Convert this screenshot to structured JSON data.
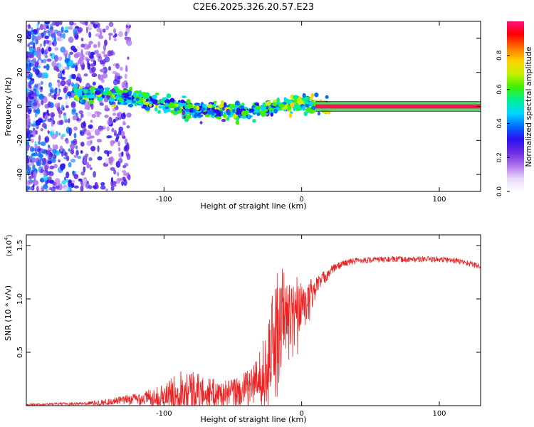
{
  "figure_title": "C2E6.2025.326.20.57.E23",
  "chart_data": [
    {
      "type": "heatmap",
      "title": "C2E6.2025.326.20.57.E23",
      "xlabel": "Height of straight line (km)",
      "ylabel": "Frequency (Hz)",
      "xlim": [
        -200,
        130
      ],
      "ylim": [
        -50,
        50
      ],
      "x_ticks": [
        -100,
        0,
        100
      ],
      "x_tick_labels": [
        "-100",
        "0",
        "100"
      ],
      "y_ticks": [
        -40,
        -20,
        0,
        20,
        40
      ],
      "y_tick_labels": [
        "-40",
        "-20",
        "0",
        "20",
        "40"
      ],
      "colorbar": {
        "label": "Normalized spectral amplitude",
        "range": [
          0.0,
          1.0
        ],
        "ticks": [
          0.0,
          0.2,
          0.4,
          0.6,
          0.8
        ],
        "tick_labels": [
          "0.0",
          "0.2",
          "0.4",
          "0.6",
          "0.8"
        ],
        "colormap": [
          "#ffffff",
          "#e8d8f8",
          "#b070f0",
          "#6a2ce0",
          "#2a10f0",
          "#0070ff",
          "#00d8ff",
          "#00f090",
          "#40f000",
          "#c8f000",
          "#ffd000",
          "#ff7000",
          "#ff0000",
          "#ff1080"
        ]
      },
      "signal_track": {
        "description_points_x": [
          -160,
          -140,
          -120,
          -100,
          -80,
          -60,
          -40,
          -25,
          -15,
          -5,
          0,
          5,
          10,
          20,
          130
        ],
        "description_points_freq": [
          7,
          6.5,
          5,
          1,
          -2,
          -3,
          -4,
          -1,
          1,
          1.5,
          2,
          1,
          0.5,
          0,
          0
        ]
      }
    },
    {
      "type": "line",
      "xlabel": "Height of straight line (km)",
      "ylabel": "SNR (10 * v/v)",
      "y_multiplier": "(x10^4)",
      "y_multiplier_base": "(x10",
      "y_multiplier_exp": "4",
      "y_multiplier_tail": ")",
      "xlim": [
        -200,
        130
      ],
      "ylim": [
        0,
        1.6
      ],
      "x_ticks": [
        -100,
        0,
        100
      ],
      "x_tick_labels": [
        "-100",
        "0",
        "100"
      ],
      "y_ticks": [
        0.5,
        1.0,
        1.5
      ],
      "y_tick_labels": [
        "0.5",
        "1.0",
        "1.5"
      ],
      "line_color": "#ee2222",
      "envelope": {
        "x": [
          -200,
          -160,
          -145,
          -130,
          -115,
          -100,
          -92,
          -85,
          -80,
          -75,
          -70,
          -65,
          -60,
          -55,
          -50,
          -45,
          -40,
          -35,
          -30,
          -25,
          -22,
          -20,
          -18,
          -16,
          -14,
          -12,
          -10,
          -8,
          -6,
          -4,
          -2,
          0,
          2,
          4,
          6,
          8,
          10,
          12,
          15,
          20,
          25,
          30,
          40,
          60,
          80,
          100,
          110,
          120,
          130
        ],
        "base": [
          0.01,
          0.02,
          0.03,
          0.05,
          0.07,
          0.09,
          0.12,
          0.15,
          0.14,
          0.13,
          0.12,
          0.12,
          0.11,
          0.11,
          0.12,
          0.13,
          0.15,
          0.2,
          0.3,
          0.45,
          0.6,
          0.7,
          0.75,
          0.8,
          0.85,
          0.9,
          0.9,
          0.92,
          0.95,
          0.96,
          0.97,
          0.98,
          0.95,
          0.9,
          1.0,
          1.05,
          1.1,
          1.15,
          1.18,
          1.25,
          1.3,
          1.33,
          1.36,
          1.37,
          1.37,
          1.37,
          1.36,
          1.34,
          1.3
        ],
        "spread": [
          0.01,
          0.02,
          0.04,
          0.06,
          0.1,
          0.15,
          0.25,
          0.35,
          0.3,
          0.25,
          0.2,
          0.2,
          0.18,
          0.18,
          0.2,
          0.22,
          0.25,
          0.3,
          0.35,
          0.45,
          0.6,
          0.7,
          0.75,
          0.8,
          0.7,
          0.65,
          0.5,
          0.3,
          0.35,
          0.35,
          0.35,
          0.3,
          0.25,
          0.3,
          0.3,
          0.2,
          0.15,
          0.12,
          0.1,
          0.08,
          0.05,
          0.05,
          0.04,
          0.04,
          0.04,
          0.04,
          0.04,
          0.04,
          0.04
        ]
      }
    }
  ]
}
